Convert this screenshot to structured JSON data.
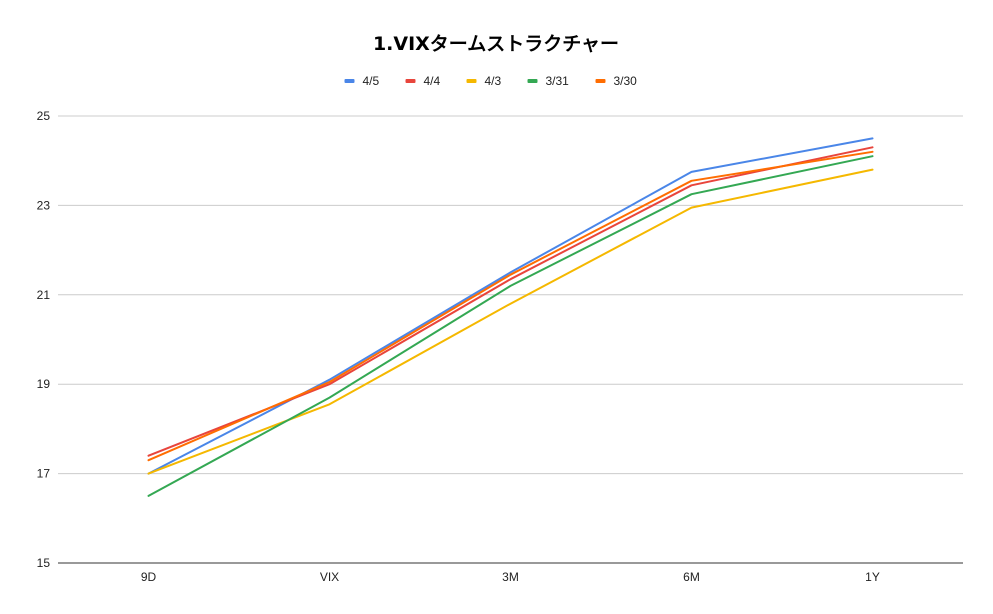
{
  "chart_data": {
    "type": "line",
    "title": "1.VIXタームストラクチャー",
    "xlabel": "",
    "ylabel": "",
    "categories": [
      "9D",
      "VIX",
      "3M",
      "6M",
      "1Y"
    ],
    "ylim": [
      15,
      25
    ],
    "yticks": [
      "15",
      "17",
      "19",
      "21",
      "23",
      "25"
    ],
    "grid": true,
    "legend_position": "top",
    "series": [
      {
        "name": "4/5",
        "color": "#4a86e8",
        "values": [
          17.0,
          19.1,
          21.5,
          23.75,
          24.5
        ]
      },
      {
        "name": "4/4",
        "color": "#e8453c",
        "values": [
          17.4,
          19.0,
          21.35,
          23.45,
          24.3
        ]
      },
      {
        "name": "4/3",
        "color": "#f5b800",
        "values": [
          17.0,
          18.55,
          20.8,
          22.95,
          23.8
        ]
      },
      {
        "name": "3/31",
        "color": "#34a853",
        "values": [
          16.5,
          18.7,
          21.2,
          23.25,
          24.1
        ]
      },
      {
        "name": "3/30",
        "color": "#ff6d01",
        "values": [
          17.3,
          19.05,
          21.45,
          23.55,
          24.2
        ]
      }
    ]
  }
}
